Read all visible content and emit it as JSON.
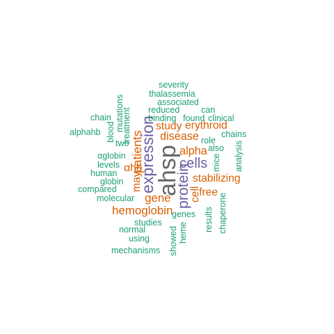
{
  "palette": {
    "gray": "#666666",
    "purple": "#6a5fa3",
    "orange": "#d95f02",
    "teal": "#1b9e77"
  },
  "words": [
    {
      "text": "ahsp",
      "color": "gray",
      "weight": 1.0,
      "orientation": "vertical"
    },
    {
      "text": "expression",
      "color": "purple",
      "weight": 0.62,
      "orientation": "vertical"
    },
    {
      "text": "protein",
      "color": "purple",
      "weight": 0.56,
      "orientation": "vertical"
    },
    {
      "text": "cells",
      "color": "purple",
      "weight": 0.52,
      "orientation": "horizontal"
    },
    {
      "text": "patients",
      "color": "orange",
      "weight": 0.44,
      "orientation": "vertical"
    },
    {
      "text": "gene",
      "color": "orange",
      "weight": 0.42,
      "orientation": "horizontal"
    },
    {
      "text": "hemoglobin",
      "color": "orange",
      "weight": 0.42,
      "orientation": "horizontal"
    },
    {
      "text": "disease",
      "color": "orange",
      "weight": 0.4,
      "orientation": "horizontal"
    },
    {
      "text": "alpha",
      "color": "orange",
      "weight": 0.4,
      "orientation": "horizontal"
    },
    {
      "text": "study",
      "color": "orange",
      "weight": 0.38,
      "orientation": "horizontal"
    },
    {
      "text": "erythroid",
      "color": "orange",
      "weight": 0.38,
      "orientation": "horizontal"
    },
    {
      "text": "stabilizing",
      "color": "orange",
      "weight": 0.38,
      "orientation": "horizontal"
    },
    {
      "text": "free",
      "color": "orange",
      "weight": 0.38,
      "orientation": "horizontal"
    },
    {
      "text": "αhb",
      "color": "orange",
      "weight": 0.38,
      "orientation": "horizontal"
    },
    {
      "text": "may",
      "color": "orange",
      "weight": 0.38,
      "orientation": "vertical"
    },
    {
      "text": "cell",
      "color": "orange",
      "weight": 0.38,
      "orientation": "vertical"
    },
    {
      "text": "severity",
      "color": "teal",
      "weight": 0.3,
      "orientation": "horizontal"
    },
    {
      "text": "thalassemia",
      "color": "teal",
      "weight": 0.3,
      "orientation": "horizontal"
    },
    {
      "text": "associated",
      "color": "teal",
      "weight": 0.3,
      "orientation": "horizontal"
    },
    {
      "text": "reduced",
      "color": "teal",
      "weight": 0.3,
      "orientation": "horizontal"
    },
    {
      "text": "can",
      "color": "teal",
      "weight": 0.3,
      "orientation": "horizontal"
    },
    {
      "text": "binding",
      "color": "teal",
      "weight": 0.3,
      "orientation": "horizontal"
    },
    {
      "text": "found",
      "color": "teal",
      "weight": 0.3,
      "orientation": "horizontal"
    },
    {
      "text": "clinical",
      "color": "teal",
      "weight": 0.3,
      "orientation": "horizontal"
    },
    {
      "text": "chain",
      "color": "teal",
      "weight": 0.3,
      "orientation": "horizontal"
    },
    {
      "text": "alphahb",
      "color": "teal",
      "weight": 0.3,
      "orientation": "horizontal"
    },
    {
      "text": "chains",
      "color": "teal",
      "weight": 0.3,
      "orientation": "horizontal"
    },
    {
      "text": "role",
      "color": "teal",
      "weight": 0.3,
      "orientation": "horizontal"
    },
    {
      "text": "also",
      "color": "teal",
      "weight": 0.3,
      "orientation": "horizontal"
    },
    {
      "text": "two",
      "color": "teal",
      "weight": 0.3,
      "orientation": "horizontal"
    },
    {
      "text": "αglobin",
      "color": "teal",
      "weight": 0.3,
      "orientation": "horizontal"
    },
    {
      "text": "levels",
      "color": "teal",
      "weight": 0.3,
      "orientation": "horizontal"
    },
    {
      "text": "human",
      "color": "teal",
      "weight": 0.3,
      "orientation": "horizontal"
    },
    {
      "text": "globin",
      "color": "teal",
      "weight": 0.3,
      "orientation": "horizontal"
    },
    {
      "text": "compared",
      "color": "teal",
      "weight": 0.3,
      "orientation": "horizontal"
    },
    {
      "text": "molecular",
      "color": "teal",
      "weight": 0.3,
      "orientation": "horizontal"
    },
    {
      "text": "studies",
      "color": "teal",
      "weight": 0.3,
      "orientation": "horizontal"
    },
    {
      "text": "genes",
      "color": "teal",
      "weight": 0.3,
      "orientation": "horizontal"
    },
    {
      "text": "normal",
      "color": "teal",
      "weight": 0.3,
      "orientation": "horizontal"
    },
    {
      "text": "using",
      "color": "teal",
      "weight": 0.3,
      "orientation": "horizontal"
    },
    {
      "text": "mechanisms",
      "color": "teal",
      "weight": 0.3,
      "orientation": "horizontal"
    },
    {
      "text": "mutations",
      "color": "teal",
      "weight": 0.3,
      "orientation": "vertical"
    },
    {
      "text": "blood",
      "color": "teal",
      "weight": 0.3,
      "orientation": "vertical"
    },
    {
      "text": "treatment",
      "color": "teal",
      "weight": 0.3,
      "orientation": "vertical"
    },
    {
      "text": "mice",
      "color": "teal",
      "weight": 0.3,
      "orientation": "vertical"
    },
    {
      "text": "analysis",
      "color": "teal",
      "weight": 0.3,
      "orientation": "vertical"
    },
    {
      "text": "results",
      "color": "teal",
      "weight": 0.3,
      "orientation": "vertical"
    },
    {
      "text": "chaperone",
      "color": "teal",
      "weight": 0.3,
      "orientation": "vertical"
    },
    {
      "text": "heme",
      "color": "teal",
      "weight": 0.3,
      "orientation": "vertical"
    },
    {
      "text": "showed",
      "color": "teal",
      "weight": 0.3,
      "orientation": "vertical"
    }
  ]
}
